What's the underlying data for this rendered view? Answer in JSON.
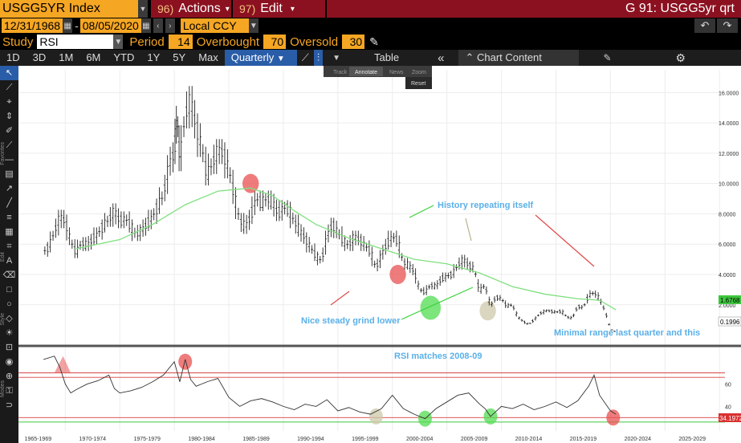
{
  "header": {
    "ticker": "USGG5YR Index",
    "actions_num": "96)",
    "actions_label": "Actions",
    "edit_num": "97)",
    "edit_label": "Edit",
    "title": "G 91: USGG5yr qrt"
  },
  "range": {
    "start": "12/31/1968",
    "end": "08/05/2020",
    "currency": "Local CCY"
  },
  "study": {
    "label": "Study",
    "value": "RSI",
    "period_label": "Period",
    "period": "14",
    "overbought_label": "Overbought",
    "overbought": "70",
    "oversold_label": "Oversold",
    "oversold": "30"
  },
  "toolbar": {
    "periods": [
      "1D",
      "3D",
      "1M",
      "6M",
      "YTD",
      "1Y",
      "5Y",
      "Max"
    ],
    "frequency": "Quarterly",
    "table": "Table",
    "chart_content": "Chart Content"
  },
  "popup": {
    "items": [
      "Track",
      "Annotate",
      "News",
      "Zoom"
    ],
    "reset": "Reset"
  },
  "sidebar_labels": {
    "favorites": "Favorites",
    "edit": "Edit",
    "style": "Style",
    "modes": "Modes"
  },
  "chart_data": {
    "type": "line",
    "x_tick_labels": [
      "1965-1969",
      "1970-1974",
      "1975-1979",
      "1980-1984",
      "1985-1989",
      "1990-1994",
      "1995-1999",
      "2000-2004",
      "2005-2009",
      "2010-2014",
      "2015-2019",
      "2020-2024",
      "2025-2029"
    ],
    "y_tick_labels": [
      "16.0000",
      "14.0000",
      "12.0000",
      "10.0000",
      "8.0000",
      "6.0000",
      "4.0000",
      "2.0000"
    ],
    "ylim": [
      -0.5,
      17.5
    ],
    "rsi_tick_labels": [
      "60",
      "40"
    ],
    "rsi_ylim": [
      18,
      92
    ],
    "current_value": "0.1996",
    "ma_value": "1.6768",
    "rsi_value": "34.1972",
    "annotations": [
      "History repeating itself",
      "Nice steady grind lower",
      "Minimal range last quarter and this",
      "RSI matches 2008-09"
    ],
    "price_series": {
      "years": [
        1968.0,
        1968.5,
        1969.0,
        1969.5,
        1970.0,
        1970.5,
        1971.0,
        1971.5,
        1972.0,
        1972.5,
        1973.0,
        1973.5,
        1974.0,
        1974.5,
        1975.0,
        1975.5,
        1976.0,
        1976.5,
        1977.0,
        1977.5,
        1978.0,
        1978.5,
        1979.0,
        1979.5,
        1980.0,
        1980.25,
        1980.5,
        1981.0,
        1981.5,
        1982.0,
        1982.5,
        1983.0,
        1983.5,
        1984.0,
        1984.5,
        1985.0,
        1985.5,
        1986.0,
        1986.5,
        1987.0,
        1987.5,
        1988.0,
        1988.5,
        1989.0,
        1989.5,
        1990.0,
        1990.5,
        1991.0,
        1991.5,
        1992.0,
        1992.5,
        1993.0,
        1993.5,
        1994.0,
        1994.5,
        1995.0,
        1995.5,
        1996.0,
        1996.5,
        1997.0,
        1997.5,
        1998.0,
        1998.5,
        1999.0,
        1999.5,
        2000.0,
        2000.5,
        2001.0,
        2001.5,
        2002.0,
        2002.5,
        2003.0,
        2003.5,
        2004.0,
        2004.5,
        2005.0,
        2005.5,
        2006.0,
        2006.5,
        2007.0,
        2007.5,
        2008.0,
        2008.5,
        2009.0,
        2009.5,
        2010.0,
        2010.5,
        2011.0,
        2011.5,
        2012.0,
        2012.5,
        2013.0,
        2013.5,
        2014.0,
        2014.5,
        2015.0,
        2015.5,
        2016.0,
        2016.5,
        2017.0,
        2017.5,
        2018.0,
        2018.5,
        2019.0,
        2019.5,
        2020.0,
        2020.5
      ],
      "values": [
        5.5,
        5.8,
        6.8,
        7.8,
        7.5,
        6.2,
        5.4,
        6.1,
        5.9,
        6.3,
        6.7,
        7.2,
        7.6,
        8.2,
        7.5,
        7.7,
        7.2,
        6.6,
        6.9,
        7.3,
        7.8,
        8.5,
        9.2,
        11.2,
        12.0,
        14.5,
        11.5,
        14.5,
        15.5,
        13.8,
        12.5,
        10.5,
        11.3,
        12.2,
        12.0,
        11.0,
        9.2,
        7.6,
        7.1,
        7.8,
        9.0,
        8.7,
        9.0,
        8.8,
        8.0,
        8.4,
        8.3,
        7.5,
        6.9,
        6.4,
        5.8,
        5.2,
        4.9,
        6.5,
        7.3,
        6.8,
        6.2,
        5.9,
        6.5,
        6.3,
        5.9,
        5.5,
        4.4,
        5.3,
        6.0,
        6.5,
        6.2,
        4.8,
        4.6,
        4.2,
        3.0,
        2.8,
        3.3,
        3.2,
        3.7,
        3.9,
        4.0,
        4.6,
        5.0,
        4.6,
        4.4,
        2.9,
        3.3,
        1.9,
        2.5,
        2.4,
        1.9,
        2.0,
        1.2,
        0.9,
        0.7,
        1.0,
        1.4,
        1.6,
        1.6,
        1.5,
        1.6,
        1.2,
        1.1,
        1.9,
        1.8,
        2.6,
        2.8,
        2.4,
        1.6,
        0.4,
        0.2
      ]
    },
    "moving_average": {
      "years": [
        1971.0,
        1975.0,
        1978.0,
        1981.0,
        1984.0,
        1987.0,
        1989.0,
        1991.0,
        1993.0,
        1996.0,
        1999.0,
        2002.0,
        2005.0,
        2008.0,
        2011.0,
        2014.0,
        2017.0,
        2019.0,
        2020.5
      ],
      "values": [
        5.7,
        6.3,
        7.3,
        8.6,
        9.5,
        9.7,
        9.2,
        8.2,
        7.3,
        6.4,
        5.7,
        5.0,
        4.7,
        4.1,
        3.2,
        2.7,
        2.4,
        2.3,
        1.67
      ]
    },
    "rsi_series": {
      "years": [
        1968.0,
        1969.0,
        1969.5,
        1970.0,
        1970.5,
        1971.0,
        1972.0,
        1973.0,
        1974.0,
        1974.5,
        1975.0,
        1976.0,
        1977.0,
        1978.0,
        1979.0,
        1980.0,
        1980.5,
        1981.0,
        1981.5,
        1982.0,
        1983.0,
        1984.0,
        1985.0,
        1986.0,
        1987.0,
        1988.0,
        1989.0,
        1990.0,
        1991.0,
        1992.0,
        1993.0,
        1994.0,
        1995.0,
        1996.0,
        1997.0,
        1998.0,
        1999.0,
        2000.0,
        2001.0,
        2002.0,
        2003.0,
        2004.0,
        2005.0,
        2006.0,
        2007.0,
        2008.0,
        2008.5,
        2009.0,
        2010.0,
        2011.0,
        2012.0,
        2013.0,
        2014.0,
        2015.0,
        2016.0,
        2017.0,
        2018.0,
        2018.5,
        2019.0,
        2020.0,
        2020.5
      ],
      "values": [
        82,
        85,
        75,
        60,
        52,
        55,
        60,
        63,
        68,
        56,
        52,
        54,
        57,
        62,
        68,
        80,
        62,
        82,
        64,
        58,
        62,
        65,
        48,
        40,
        45,
        47,
        44,
        40,
        37,
        42,
        40,
        46,
        36,
        39,
        35,
        33,
        38,
        50,
        38,
        33,
        29,
        38,
        44,
        50,
        52,
        42,
        38,
        31,
        40,
        38,
        42,
        37,
        40,
        44,
        39,
        45,
        58,
        68,
        50,
        36,
        33
      ]
    },
    "highlight_circles": [
      {
        "panel": "price",
        "year": 1987.0,
        "value": 10.0,
        "color": "red"
      },
      {
        "panel": "price",
        "year": 2000.5,
        "value": 4.0,
        "color": "red"
      },
      {
        "panel": "price",
        "year": 2003.5,
        "value": 1.8,
        "color": "green"
      },
      {
        "panel": "price",
        "year": 2008.75,
        "value": 1.6,
        "color": "tan"
      },
      {
        "panel": "rsi",
        "year": 1981.0,
        "value": 80,
        "color": "red"
      },
      {
        "panel": "rsi",
        "year": 1998.5,
        "value": 31,
        "color": "tan"
      },
      {
        "panel": "rsi",
        "year": 2003.0,
        "value": 29,
        "color": "green"
      },
      {
        "panel": "rsi",
        "year": 2009.0,
        "value": 31,
        "color": "green"
      },
      {
        "panel": "rsi",
        "year": 2020.25,
        "value": 30,
        "color": "red"
      }
    ],
    "rsi_levels": [
      70,
      66,
      30,
      26
    ],
    "grid": true
  }
}
